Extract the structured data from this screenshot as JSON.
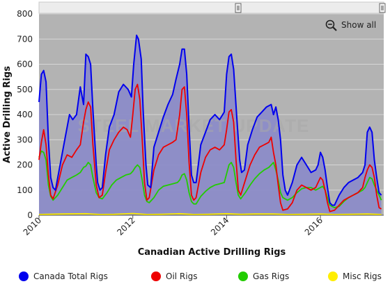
{
  "chart_data": {
    "type": "area",
    "title": "Canadian Active Drilling Rigs",
    "ylabel": "Active Drilling Rigs",
    "xlabel": "",
    "ylim": [
      0,
      800
    ],
    "xlim": [
      2010.0,
      2017.35
    ],
    "y_ticks": [
      "0",
      "100",
      "200",
      "300",
      "400",
      "500",
      "600",
      "700",
      "800"
    ],
    "x_ticks": [
      "2010",
      "2012",
      "2014",
      "2016"
    ],
    "grid": true,
    "legend_position": "bottom",
    "watermark": "STEEL MARKET UPDATE",
    "series": [
      {
        "name": "Canada Total Rigs",
        "color": "#0000ee",
        "x": [
          2010.0,
          2010.05,
          2010.1,
          2010.15,
          2010.2,
          2010.25,
          2010.3,
          2010.35,
          2010.45,
          2010.55,
          2010.65,
          2010.72,
          2010.8,
          2010.88,
          2010.95,
          2011.0,
          2011.05,
          2011.1,
          2011.15,
          2011.22,
          2011.25,
          2011.3,
          2011.35,
          2011.42,
          2011.5,
          2011.6,
          2011.7,
          2011.8,
          2011.9,
          2011.97,
          2012.02,
          2012.08,
          2012.12,
          2012.18,
          2012.22,
          2012.28,
          2012.32,
          2012.38,
          2012.45,
          2012.55,
          2012.65,
          2012.75,
          2012.85,
          2012.92,
          2013.0,
          2013.05,
          2013.1,
          2013.15,
          2013.2,
          2013.25,
          2013.3,
          2013.35,
          2013.45,
          2013.55,
          2013.65,
          2013.75,
          2013.85,
          2013.95,
          2014.0,
          2014.05,
          2014.1,
          2014.15,
          2014.22,
          2014.28,
          2014.32,
          2014.38,
          2014.45,
          2014.55,
          2014.65,
          2014.75,
          2014.85,
          2014.95,
          2015.0,
          2015.05,
          2015.1,
          2015.15,
          2015.2,
          2015.25,
          2015.3,
          2015.4,
          2015.5,
          2015.6,
          2015.7,
          2015.8,
          2015.9,
          2015.95,
          2016.0,
          2016.05,
          2016.1,
          2016.15,
          2016.2,
          2016.25,
          2016.3,
          2016.4,
          2016.5,
          2016.6,
          2016.7,
          2016.8,
          2016.9,
          2016.95,
          2017.0,
          2017.05,
          2017.1,
          2017.15,
          2017.2,
          2017.25,
          2017.3
        ],
        "values": [
          450,
          560,
          575,
          530,
          300,
          150,
          110,
          100,
          200,
          300,
          400,
          380,
          400,
          510,
          440,
          640,
          630,
          600,
          420,
          200,
          130,
          100,
          110,
          240,
          350,
          400,
          490,
          520,
          500,
          470,
          600,
          715,
          700,
          620,
          420,
          200,
          120,
          110,
          270,
          330,
          390,
          440,
          480,
          540,
          600,
          660,
          660,
          560,
          350,
          160,
          130,
          130,
          280,
          330,
          380,
          400,
          380,
          410,
          560,
          630,
          640,
          580,
          380,
          220,
          170,
          180,
          280,
          340,
          390,
          410,
          430,
          440,
          400,
          430,
          380,
          300,
          160,
          100,
          80,
          130,
          200,
          230,
          200,
          170,
          180,
          200,
          250,
          230,
          180,
          110,
          50,
          40,
          40,
          80,
          110,
          130,
          140,
          150,
          170,
          200,
          330,
          350,
          330,
          220,
          150,
          90,
          80
        ]
      },
      {
        "name": "Oil Rigs",
        "color": "#ee0000",
        "x": [
          2010.0,
          2010.05,
          2010.1,
          2010.15,
          2010.2,
          2010.25,
          2010.3,
          2010.4,
          2010.5,
          2010.6,
          2010.7,
          2010.8,
          2010.88,
          2010.95,
          2011.0,
          2011.05,
          2011.1,
          2011.15,
          2011.22,
          2011.28,
          2011.35,
          2011.42,
          2011.5,
          2011.6,
          2011.7,
          2011.8,
          2011.88,
          2011.95,
          2012.0,
          2012.05,
          2012.1,
          2012.15,
          2012.2,
          2012.25,
          2012.3,
          2012.35,
          2012.45,
          2012.55,
          2012.65,
          2012.75,
          2012.85,
          2012.92,
          2013.0,
          2013.05,
          2013.1,
          2013.15,
          2013.2,
          2013.25,
          2013.3,
          2013.35,
          2013.45,
          2013.55,
          2013.65,
          2013.75,
          2013.85,
          2013.95,
          2014.0,
          2014.05,
          2014.1,
          2014.15,
          2014.2,
          2014.25,
          2014.3,
          2014.4,
          2014.5,
          2014.6,
          2014.7,
          2014.8,
          2014.9,
          2014.95,
          2015.0,
          2015.05,
          2015.1,
          2015.15,
          2015.2,
          2015.3,
          2015.4,
          2015.5,
          2015.6,
          2015.7,
          2015.8,
          2015.9,
          2016.0,
          2016.05,
          2016.1,
          2016.15,
          2016.2,
          2016.3,
          2016.4,
          2016.5,
          2016.6,
          2016.7,
          2016.8,
          2016.9,
          2016.95,
          2017.0,
          2017.05,
          2017.1,
          2017.15,
          2017.2,
          2017.25,
          2017.3
        ],
        "values": [
          220,
          290,
          340,
          280,
          160,
          80,
          65,
          120,
          200,
          240,
          230,
          260,
          280,
          370,
          420,
          450,
          430,
          280,
          120,
          70,
          80,
          170,
          260,
          300,
          330,
          350,
          340,
          310,
          400,
          500,
          520,
          460,
          300,
          130,
          60,
          70,
          180,
          240,
          270,
          280,
          290,
          300,
          400,
          500,
          510,
          400,
          210,
          80,
          60,
          70,
          170,
          230,
          260,
          270,
          260,
          280,
          340,
          410,
          420,
          370,
          220,
          100,
          80,
          140,
          200,
          240,
          270,
          280,
          290,
          310,
          250,
          200,
          120,
          50,
          20,
          25,
          50,
          100,
          120,
          110,
          100,
          110,
          150,
          140,
          100,
          50,
          15,
          20,
          40,
          60,
          70,
          80,
          90,
          110,
          150,
          180,
          200,
          190,
          150,
          80,
          30,
          25
        ]
      },
      {
        "name": "Gas Rigs",
        "color": "#22cc00",
        "x": [
          2010.0,
          2010.05,
          2010.1,
          2010.15,
          2010.2,
          2010.25,
          2010.3,
          2010.4,
          2010.5,
          2010.6,
          2010.7,
          2010.8,
          2010.88,
          2010.95,
          2011.0,
          2011.05,
          2011.1,
          2011.15,
          2011.22,
          2011.28,
          2011.35,
          2011.45,
          2011.55,
          2011.65,
          2011.75,
          2011.85,
          2011.95,
          2012.0,
          2012.05,
          2012.1,
          2012.15,
          2012.2,
          2012.25,
          2012.3,
          2012.35,
          2012.45,
          2012.55,
          2012.65,
          2012.75,
          2012.85,
          2012.95,
          2013.0,
          2013.05,
          2013.1,
          2013.15,
          2013.2,
          2013.25,
          2013.3,
          2013.35,
          2013.45,
          2013.55,
          2013.65,
          2013.75,
          2013.85,
          2013.95,
          2014.0,
          2014.05,
          2014.1,
          2014.15,
          2014.2,
          2014.25,
          2014.3,
          2014.4,
          2014.5,
          2014.6,
          2014.7,
          2014.8,
          2014.9,
          2014.95,
          2015.0,
          2015.05,
          2015.1,
          2015.15,
          2015.2,
          2015.3,
          2015.4,
          2015.5,
          2015.6,
          2015.7,
          2015.8,
          2015.9,
          2016.0,
          2016.05,
          2016.1,
          2016.15,
          2016.2,
          2016.3,
          2016.4,
          2016.5,
          2016.6,
          2016.7,
          2016.8,
          2016.9,
          2016.95,
          2017.0,
          2017.05,
          2017.1,
          2017.15,
          2017.2,
          2017.25,
          2017.3
        ],
        "values": [
          230,
          255,
          250,
          220,
          120,
          75,
          60,
          80,
          110,
          140,
          150,
          160,
          170,
          190,
          195,
          210,
          200,
          150,
          90,
          70,
          65,
          90,
          120,
          140,
          150,
          160,
          165,
          175,
          190,
          200,
          190,
          140,
          80,
          55,
          50,
          70,
          100,
          115,
          120,
          125,
          130,
          140,
          160,
          165,
          140,
          90,
          55,
          45,
          45,
          75,
          95,
          110,
          120,
          125,
          130,
          165,
          200,
          210,
          190,
          130,
          80,
          65,
          90,
          120,
          145,
          165,
          180,
          190,
          200,
          210,
          180,
          140,
          90,
          70,
          60,
          70,
          90,
          105,
          110,
          110,
          100,
          110,
          115,
          100,
          70,
          40,
          30,
          35,
          55,
          70,
          80,
          90,
          100,
          110,
          130,
          150,
          145,
          120,
          100,
          80,
          60
        ]
      },
      {
        "name": "Misc Rigs",
        "color": "#ffee00",
        "x": [
          2010.0,
          2010.5,
          2011.0,
          2011.3,
          2011.6,
          2012.0,
          2012.3,
          2012.6,
          2013.0,
          2013.3,
          2013.6,
          2014.0,
          2014.3,
          2014.6,
          2015.0,
          2015.3,
          2015.6,
          2016.0,
          2016.3,
          2016.6,
          2017.0,
          2017.3
        ],
        "values": [
          3,
          5,
          6,
          3,
          4,
          7,
          3,
          4,
          6,
          3,
          4,
          6,
          4,
          5,
          5,
          3,
          4,
          5,
          3,
          4,
          5,
          3
        ]
      }
    ]
  },
  "legend": [
    {
      "label": "Canada Total Rigs",
      "color": "#0000ee"
    },
    {
      "label": "Oil Rigs",
      "color": "#ee0000"
    },
    {
      "label": "Gas Rigs",
      "color": "#22cc00"
    },
    {
      "label": "Misc Rigs",
      "color": "#ffee00"
    }
  ],
  "toolbar": {
    "show_all_label": "Show all",
    "zoom_icon": "zoom-out-icon"
  },
  "navigator": {
    "handle_icon": "drag-handle-icon"
  },
  "colors": {
    "plot_background": "#b3b3b3",
    "area_fill": "#8c8cc8",
    "grid": "#d6d6d6"
  }
}
